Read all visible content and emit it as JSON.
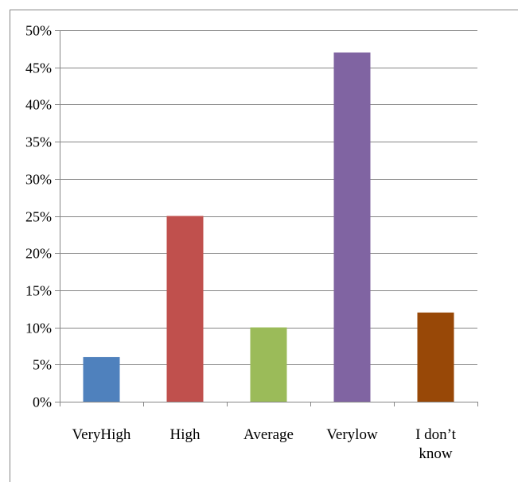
{
  "chart_data": {
    "type": "bar",
    "title": "",
    "xlabel": "",
    "ylabel": "",
    "categories": [
      "VeryHigh",
      "High",
      "Average",
      "Verylow",
      "I don’t know"
    ],
    "values": [
      6,
      25,
      10,
      47,
      12
    ],
    "colors": [
      "#4f81bd",
      "#c0504d",
      "#9bbb59",
      "#8064a2",
      "#984807"
    ],
    "ylim": [
      0,
      50
    ],
    "yticks": [
      0,
      5,
      10,
      15,
      20,
      25,
      30,
      35,
      40,
      45,
      50
    ],
    "ytick_labels": [
      "0%",
      "5%",
      "10%",
      "15%",
      "20%",
      "25%",
      "30%",
      "35%",
      "40%",
      "45%",
      "50%"
    ],
    "grid": true,
    "legend": "none"
  }
}
